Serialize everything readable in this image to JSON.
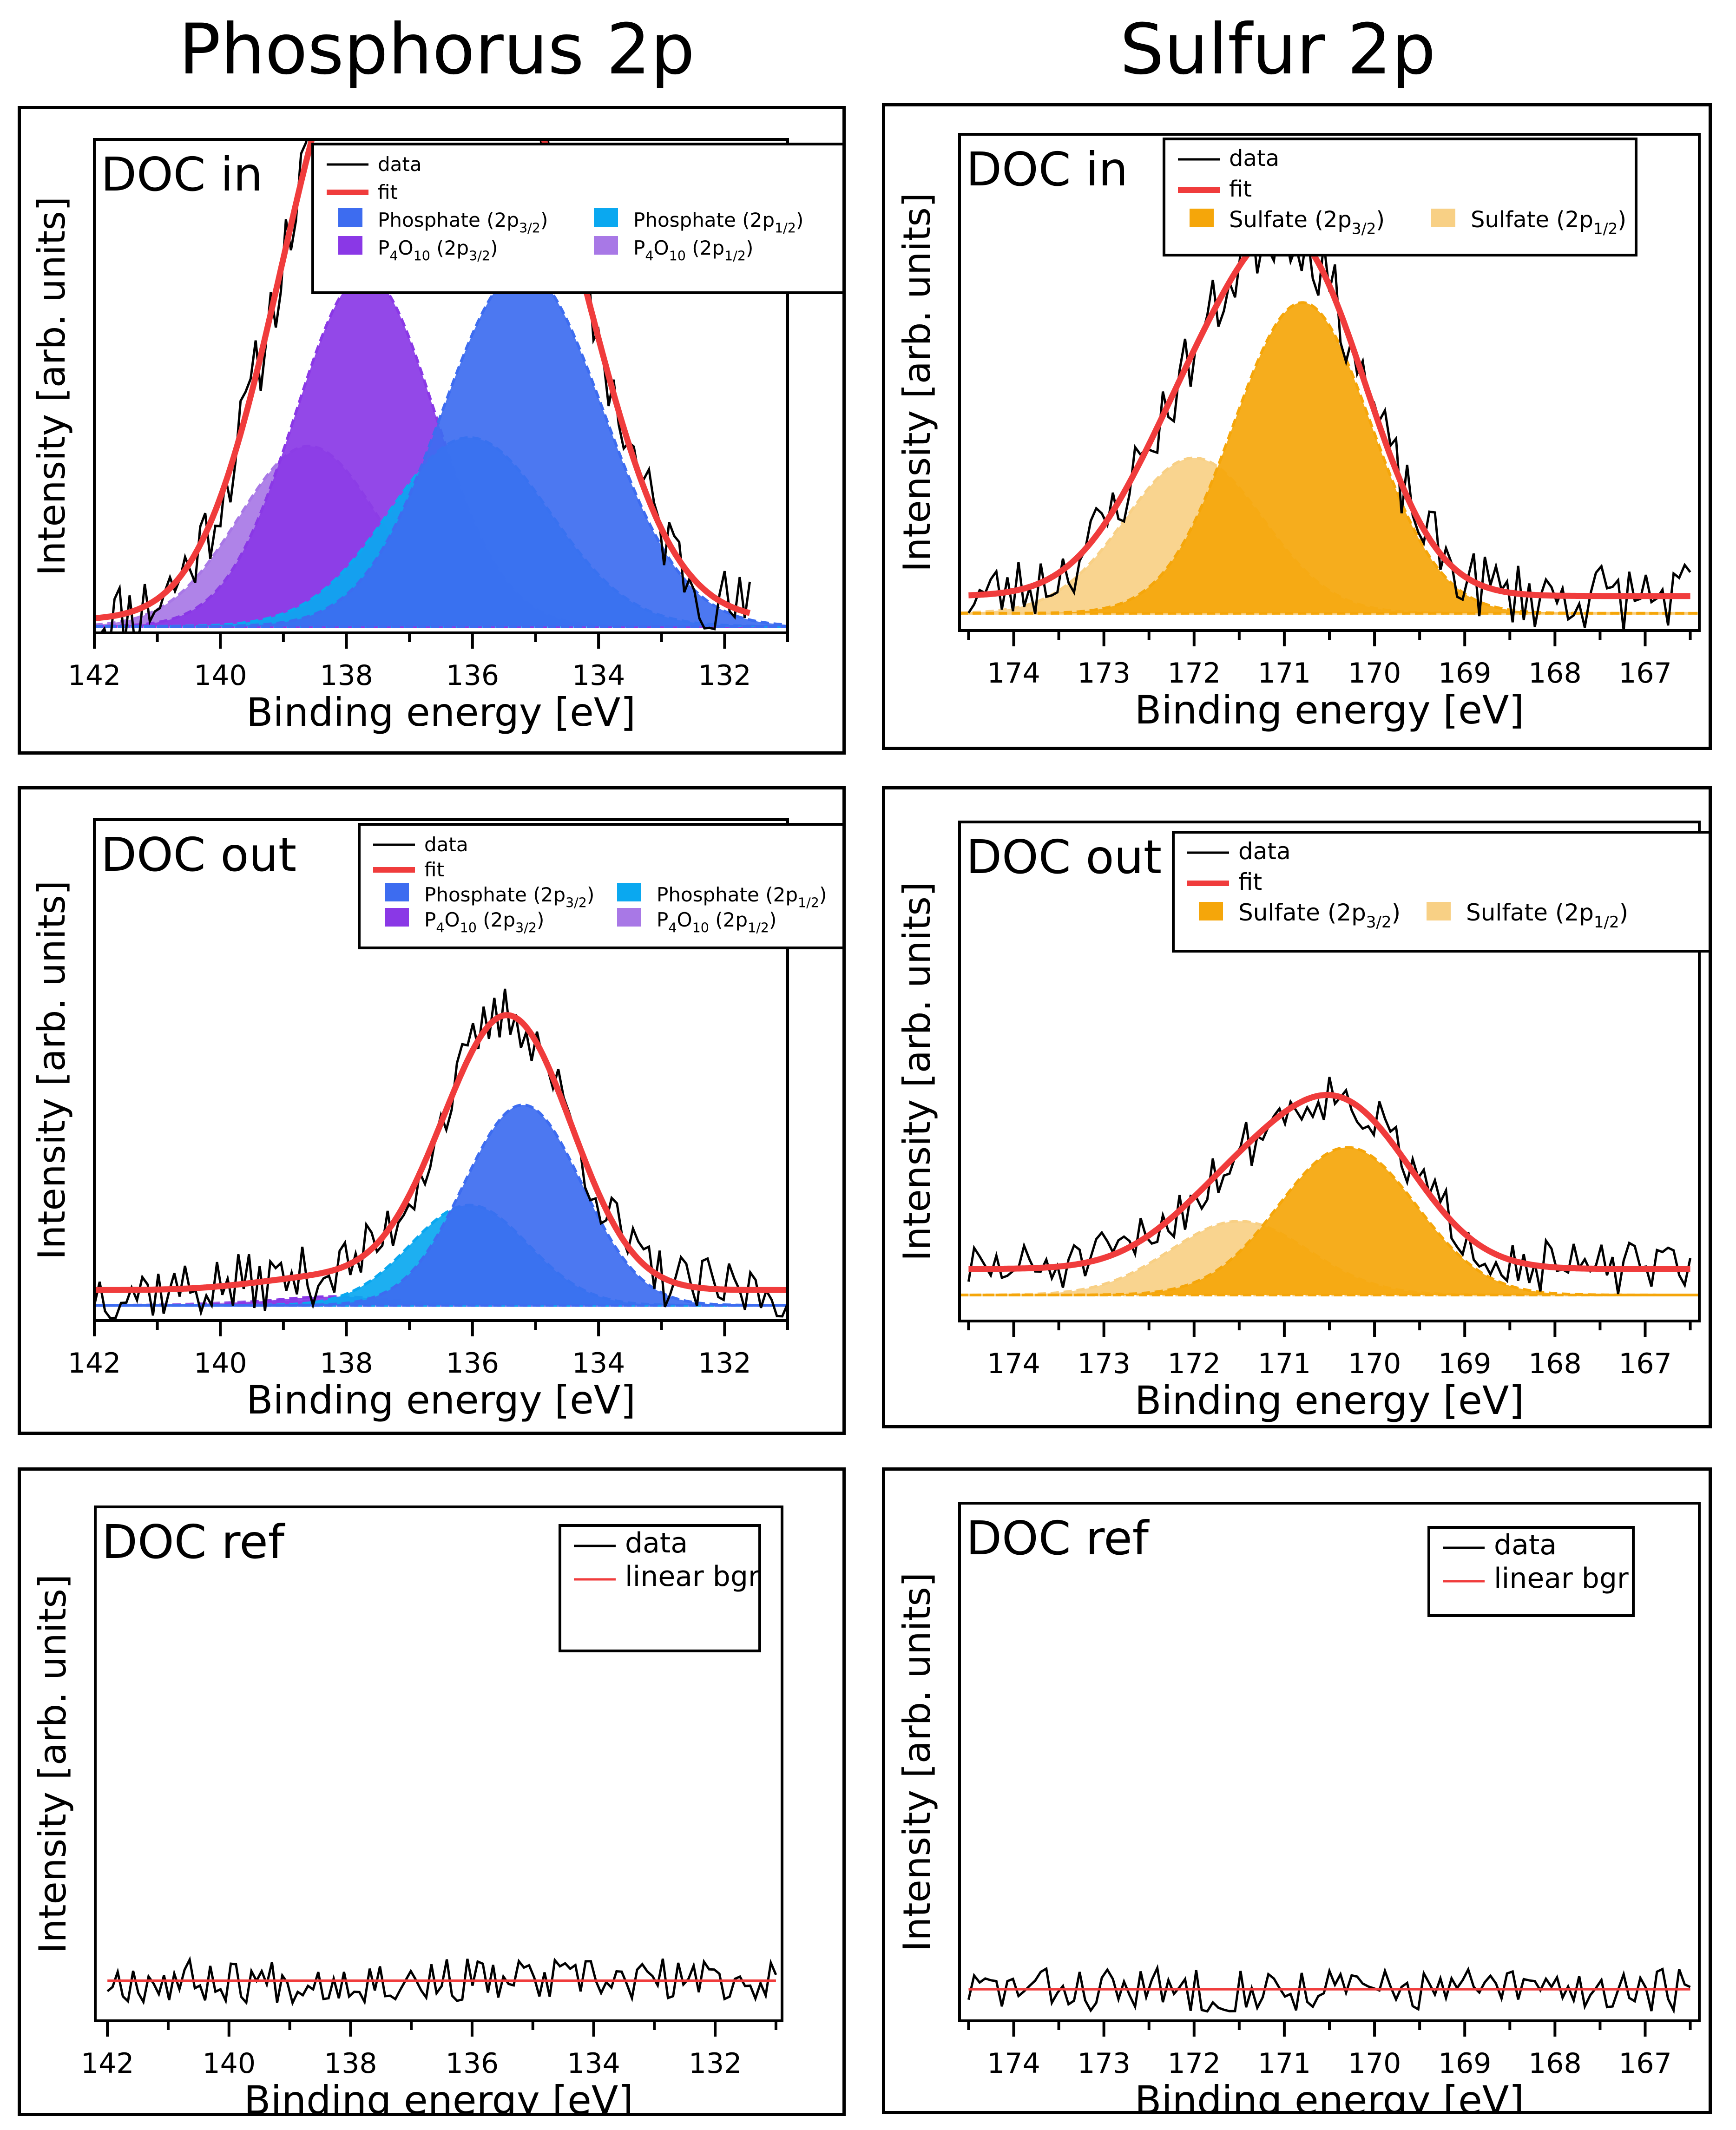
{
  "columns": [
    "Phosphorus 2p",
    "Sulfur 2p"
  ],
  "colors": {
    "data": "#000000",
    "fit": "#f03c3c",
    "linear_bgr": "#f03c3c",
    "phosphate_3_2": "#3d6cf0",
    "phosphate_1_2": "#0aa8f0",
    "p4o10_3_2": "#8a38e6",
    "p4o10_1_2": "#a878e6",
    "sulfate_3_2": "#f5a60a",
    "sulfate_1_2": "#f8d085"
  },
  "chart_data": [
    {
      "type": "line",
      "id": "p-in",
      "panel_label": "DOC in",
      "element": "P",
      "xlabel": "Binding energy [eV]",
      "ylabel": "Intensity [arb. units]",
      "xlim": [
        142,
        131
      ],
      "ylim": [
        0,
        1.15
      ],
      "xticks": [
        142,
        140,
        138,
        136,
        134,
        132
      ],
      "xminor": [
        141,
        139,
        137,
        135,
        133,
        131
      ],
      "data_range": [
        142,
        131.6
      ],
      "bg": 0.03,
      "noise": 0.09,
      "noise_seed": 11,
      "components": [
        {
          "name": "Phosphate (2p3/2)",
          "center": 135.2,
          "height": 0.83,
          "fwhm": 3.0
        },
        {
          "name": "Phosphate (2p1/2)",
          "center": 136.05,
          "height": 0.44,
          "fwhm": 3.0
        },
        {
          "name": "P4O10 (2p3/2)",
          "center": 137.7,
          "height": 0.82,
          "fwhm": 2.6
        },
        {
          "name": "P4O10 (2p1/2)",
          "center": 138.6,
          "height": 0.42,
          "fwhm": 2.6
        }
      ],
      "legend": [
        {
          "key": "data",
          "label": "data"
        },
        {
          "key": "fit",
          "label": "fit"
        },
        {
          "key": "phosphate_3_2",
          "label": "Phosphate (2p3/2)"
        },
        {
          "key": "phosphate_1_2",
          "label": "Phosphate (2p1/2)"
        },
        {
          "key": "p4o10_3_2",
          "label": "P4O10 (2p3/2)"
        },
        {
          "key": "p4o10_1_2",
          "label": "P4O10 (2p1/2)"
        }
      ]
    },
    {
      "type": "line",
      "id": "s-in",
      "panel_label": "DOC in",
      "element": "S",
      "xlabel": "Binding energy [eV]",
      "ylabel": "Intensity [arb. units]",
      "xlim": [
        174.6,
        166.4
      ],
      "ylim": [
        0,
        1.15
      ],
      "xticks": [
        174,
        173,
        172,
        171,
        170,
        169,
        168,
        167
      ],
      "xminor": [
        174.5,
        173.5,
        172.5,
        171.5,
        170.5,
        169.5,
        168.5,
        167.5,
        166.5
      ],
      "data_range": [
        174.5,
        166.5
      ],
      "bg": 0.08,
      "noise": 0.08,
      "noise_seed": 23,
      "components": [
        {
          "name": "Sulfate (2p3/2)",
          "center": 170.8,
          "height": 0.72,
          "fwhm": 1.8
        },
        {
          "name": "Sulfate (2p1/2)",
          "center": 172.0,
          "height": 0.36,
          "fwhm": 1.8
        }
      ],
      "legend": [
        {
          "key": "data",
          "label": "data"
        },
        {
          "key": "fit",
          "label": "fit"
        },
        {
          "key": "sulfate_3_2",
          "label": "Sulfate (2p3/2)"
        },
        {
          "key": "sulfate_1_2",
          "label": "Sulfate (2p1/2)"
        }
      ]
    },
    {
      "type": "line",
      "id": "p-out",
      "panel_label": "DOC out",
      "element": "P",
      "xlabel": "Binding energy [eV]",
      "ylabel": "Intensity [arb. units]",
      "xlim": [
        142,
        131
      ],
      "ylim": [
        0,
        1.15
      ],
      "xticks": [
        142,
        140,
        138,
        136,
        134,
        132
      ],
      "xminor": [
        141,
        139,
        137,
        135,
        133,
        131
      ],
      "data_range": [
        142,
        131
      ],
      "bg": 0.07,
      "noise": 0.07,
      "noise_seed": 37,
      "components": [
        {
          "name": "Phosphate (2p3/2)",
          "center": 135.2,
          "height": 0.46,
          "fwhm": 2.2
        },
        {
          "name": "Phosphate (2p1/2)",
          "center": 136.05,
          "height": 0.23,
          "fwhm": 2.2
        },
        {
          "name": "P4O10 (2p3/2)",
          "center": 138.2,
          "height": 0.02,
          "fwhm": 2.2
        },
        {
          "name": "P4O10 (2p1/2)",
          "center": 139.0,
          "height": 0.01,
          "fwhm": 2.2
        }
      ],
      "legend": [
        {
          "key": "data",
          "label": "data"
        },
        {
          "key": "fit",
          "label": "fit"
        },
        {
          "key": "phosphate_3_2",
          "label": "Phosphate (2p3/2)"
        },
        {
          "key": "phosphate_1_2",
          "label": "Phosphate (2p1/2)"
        },
        {
          "key": "p4o10_3_2",
          "label": "P4O10 (2p3/2)"
        },
        {
          "key": "p4o10_1_2",
          "label": "P4O10 (2p1/2)"
        }
      ]
    },
    {
      "type": "line",
      "id": "s-out",
      "panel_label": "DOC out",
      "element": "S",
      "xlabel": "Binding energy [eV]",
      "ylabel": "Intensity [arb. units]",
      "xlim": [
        174.6,
        166.4
      ],
      "ylim": [
        0,
        1.15
      ],
      "xticks": [
        174,
        173,
        172,
        171,
        170,
        169,
        168,
        167
      ],
      "xminor": [
        174.5,
        173.5,
        172.5,
        171.5,
        170.5,
        169.5,
        168.5,
        167.5,
        166.5
      ],
      "data_range": [
        174.5,
        166.5
      ],
      "bg": 0.12,
      "noise": 0.06,
      "noise_seed": 51,
      "components": [
        {
          "name": "Sulfate (2p3/2)",
          "center": 170.3,
          "height": 0.34,
          "fwhm": 1.8
        },
        {
          "name": "Sulfate (2p1/2)",
          "center": 171.5,
          "height": 0.17,
          "fwhm": 1.8
        }
      ],
      "legend": [
        {
          "key": "data",
          "label": "data"
        },
        {
          "key": "fit",
          "label": "fit"
        },
        {
          "key": "sulfate_3_2",
          "label": "Sulfate (2p3/2)"
        },
        {
          "key": "sulfate_1_2",
          "label": "Sulfate (2p1/2)"
        }
      ]
    },
    {
      "type": "line",
      "id": "p-ref",
      "panel_label": "DOC ref",
      "element": "P",
      "xlabel": "Binding energy [eV]",
      "ylabel": "Intensity [arb. units]",
      "xlim": [
        142.2,
        130.9
      ],
      "ylim": [
        0,
        1.15
      ],
      "xticks": [
        142,
        140,
        138,
        136,
        134,
        132
      ],
      "xminor": [
        141,
        139,
        137,
        135,
        133,
        131
      ],
      "data_range": [
        142,
        131
      ],
      "bg": 0.09,
      "noise": 0.05,
      "noise_seed": 67,
      "components": [],
      "legend": [
        {
          "key": "data",
          "label": "data"
        },
        {
          "key": "linear_bgr",
          "label": "linear bgr"
        }
      ]
    },
    {
      "type": "line",
      "id": "s-ref",
      "panel_label": "DOC ref",
      "element": "S",
      "xlabel": "Binding energy [eV]",
      "ylabel": "Intensity [arb. units]",
      "xlim": [
        174.6,
        166.4
      ],
      "ylim": [
        0,
        1.15
      ],
      "xticks": [
        174,
        173,
        172,
        171,
        170,
        169,
        168,
        167
      ],
      "xminor": [
        174.5,
        173.5,
        172.5,
        171.5,
        170.5,
        169.5,
        168.5,
        167.5,
        166.5
      ],
      "data_range": [
        174.5,
        166.5
      ],
      "bg": 0.07,
      "noise": 0.05,
      "noise_seed": 83,
      "components": [],
      "legend": [
        {
          "key": "data",
          "label": "data"
        },
        {
          "key": "linear_bgr",
          "label": "linear bgr"
        }
      ]
    }
  ]
}
